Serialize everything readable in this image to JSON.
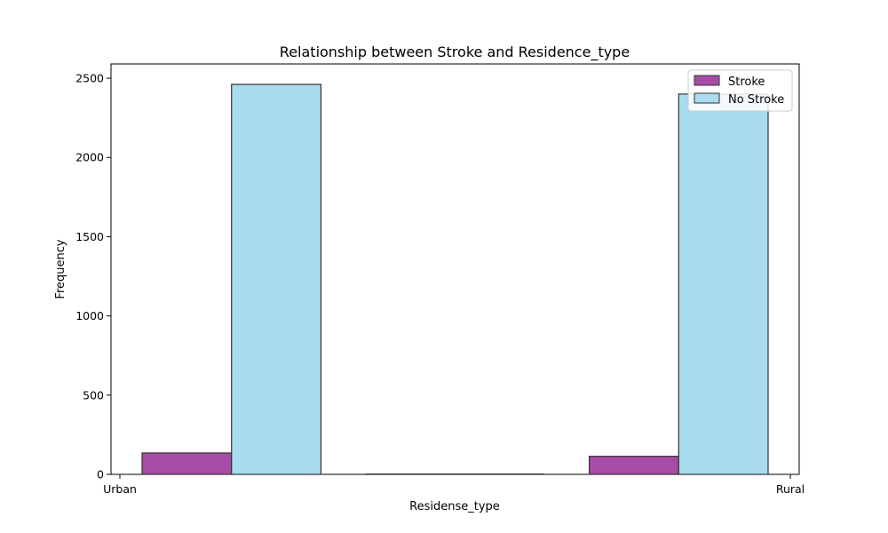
{
  "chart_data": {
    "type": "bar",
    "title": "Relationship between Stroke and Residence_type",
    "xlabel": "Residense_type",
    "ylabel": "Frequency",
    "x_tick_labels": [
      "Urban",
      "Rural"
    ],
    "categories": [
      "Urban",
      "Rural"
    ],
    "ylim": [
      0,
      2590
    ],
    "yticks": [
      0,
      500,
      1000,
      1500,
      2000,
      2500
    ],
    "grid": false,
    "legend_position": "top-right",
    "series": [
      {
        "name": "Stroke",
        "color": "#a64ca6",
        "values": [
          135,
          114
        ]
      },
      {
        "name": "No Stroke",
        "color": "#a9dcee",
        "values": [
          2461,
          2400
        ]
      }
    ],
    "edge_color": "#333333"
  }
}
